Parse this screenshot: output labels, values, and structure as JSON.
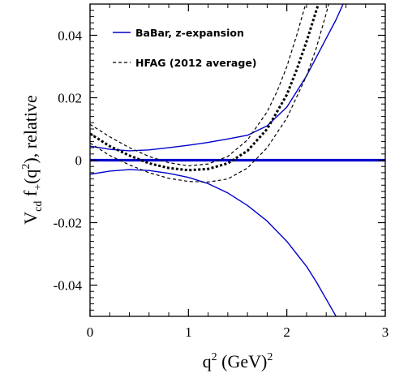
{
  "chart_data": {
    "type": "line",
    "title": "",
    "xlabel": {
      "base": "q",
      "sup": "2",
      "unit": " (GeV)",
      "unit_sup": "2"
    },
    "ylabel": {
      "pre": "V",
      "pre_sub": "cd",
      "mid": " f",
      "mid_sub": "+",
      "arg_open": "(q",
      "arg_sup": "2",
      "post": "), relative"
    },
    "xlim": [
      0,
      3
    ],
    "ylim": [
      -0.05,
      0.05
    ],
    "x_ticks": [
      {
        "value": 0,
        "label": "0"
      },
      {
        "value": 1,
        "label": "1"
      },
      {
        "value": 2,
        "label": "2"
      },
      {
        "value": 3,
        "label": "3"
      }
    ],
    "y_ticks": [
      {
        "value": -0.04,
        "label": "-0.04"
      },
      {
        "value": -0.02,
        "label": "-0.02"
      },
      {
        "value": 0,
        "label": "0"
      },
      {
        "value": 0.02,
        "label": "0.02"
      },
      {
        "value": 0.04,
        "label": "0.04"
      }
    ],
    "legend": {
      "placement": "top-left",
      "entries": [
        {
          "label": "BaBar, z-expansion",
          "color": "#0000cc",
          "style": "solid"
        },
        {
          "label": "HFAG (2012 average)",
          "color": "#000000",
          "style": "dashed"
        }
      ]
    },
    "series": [
      {
        "group": "BaBar, z-expansion",
        "role": "central",
        "color": "#0000cc",
        "style": "solid-thick",
        "x": [
          0,
          0.5,
          1.0,
          1.5,
          2.0,
          2.5,
          3.0
        ],
        "y": [
          0,
          0,
          0,
          0,
          0,
          0,
          0
        ]
      },
      {
        "group": "BaBar, z-expansion",
        "role": "upper",
        "color": "#0000cc",
        "style": "solid",
        "x": [
          0,
          0.2,
          0.4,
          0.6,
          0.8,
          1.0,
          1.2,
          1.4,
          1.6,
          1.8,
          2.0,
          2.2,
          2.4,
          2.5,
          2.6,
          2.7
        ],
        "y": [
          0.0045,
          0.0035,
          0.003,
          0.0033,
          0.004,
          0.0048,
          0.0057,
          0.0068,
          0.008,
          0.011,
          0.017,
          0.027,
          0.039,
          0.045,
          0.052,
          0.06
        ]
      },
      {
        "group": "BaBar, z-expansion",
        "role": "lower",
        "color": "#0000cc",
        "style": "solid",
        "x": [
          0,
          0.2,
          0.4,
          0.6,
          0.8,
          1.0,
          1.2,
          1.4,
          1.6,
          1.8,
          2.0,
          2.2,
          2.3,
          2.4,
          2.5
        ],
        "y": [
          -0.0045,
          -0.0035,
          -0.003,
          -0.0033,
          -0.0042,
          -0.0055,
          -0.0075,
          -0.0105,
          -0.0145,
          -0.0195,
          -0.026,
          -0.034,
          -0.039,
          -0.0445,
          -0.05
        ]
      },
      {
        "group": "HFAG (2012 average)",
        "role": "central",
        "color": "#000000",
        "style": "dashed-thick",
        "x": [
          0,
          0.2,
          0.4,
          0.6,
          0.8,
          1.0,
          1.2,
          1.4,
          1.6,
          1.8,
          2.0,
          2.1,
          2.2,
          2.3,
          2.35
        ],
        "y": [
          0.0085,
          0.0045,
          0.0015,
          -0.001,
          -0.0025,
          -0.0032,
          -0.0028,
          -0.001,
          0.003,
          0.01,
          0.021,
          0.029,
          0.038,
          0.048,
          0.053
        ]
      },
      {
        "group": "HFAG (2012 average)",
        "role": "upper",
        "color": "#000000",
        "style": "dashed",
        "x": [
          0,
          0.2,
          0.4,
          0.6,
          0.8,
          1.0,
          1.2,
          1.4,
          1.6,
          1.8,
          1.9,
          2.0,
          2.1,
          2.2,
          2.25
        ],
        "y": [
          0.0115,
          0.0075,
          0.004,
          0.0012,
          -0.0008,
          -0.0018,
          -0.0012,
          0.0012,
          0.0065,
          0.0155,
          0.022,
          0.03,
          0.04,
          0.051,
          0.056
        ]
      },
      {
        "group": "HFAG (2012 average)",
        "role": "lower",
        "color": "#000000",
        "style": "dashed",
        "x": [
          0,
          0.2,
          0.4,
          0.6,
          0.8,
          1.0,
          1.2,
          1.4,
          1.6,
          1.8,
          2.0,
          2.2,
          2.3,
          2.4,
          2.45
        ],
        "y": [
          0.0055,
          0.0015,
          -0.0015,
          -0.004,
          -0.0058,
          -0.0068,
          -0.007,
          -0.006,
          -0.0025,
          0.004,
          0.0135,
          0.027,
          0.036,
          0.047,
          0.053
        ]
      }
    ]
  }
}
